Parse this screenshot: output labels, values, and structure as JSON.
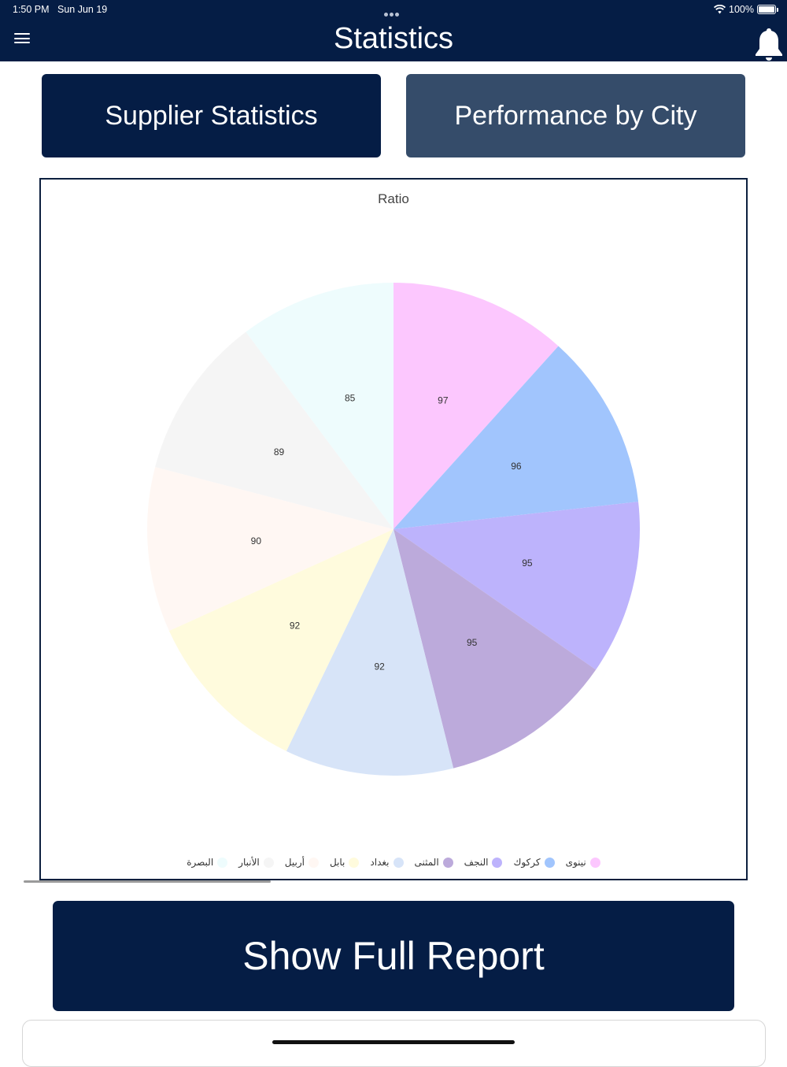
{
  "status_bar": {
    "time": "1:50 PM",
    "date": "Sun Jun 19",
    "battery": "100%"
  },
  "header": {
    "title": "Statistics",
    "background": "#051d45",
    "menu_icon": "hamburger-menu-icon",
    "notification_icon": "bell-icon"
  },
  "tabs": {
    "supplier_label": "Supplier Statistics",
    "city_label": "Performance by City",
    "active": "Supplier Statistics"
  },
  "chart_data": {
    "type": "pie",
    "title": "Ratio",
    "legend_position": "bottom",
    "slices": [
      {
        "label": "نينوى",
        "value": 97,
        "color": "#fcc7fe"
      },
      {
        "label": "كركوك",
        "value": 96,
        "color": "#a1c5fd"
      },
      {
        "label": "النجف",
        "value": 95,
        "color": "#bdb3fc"
      },
      {
        "label": "المثنى",
        "value": 95,
        "color": "#bcaadb"
      },
      {
        "label": "بغداد",
        "value": 92,
        "color": "#d7e4f8"
      },
      {
        "label": "بابل",
        "value": 92,
        "color": "#fffbdd"
      },
      {
        "label": "أربيل",
        "value": 90,
        "color": "#fff7f3"
      },
      {
        "label": "الأنبار",
        "value": 89,
        "color": "#f5f5f5"
      },
      {
        "label": "البصرة",
        "value": 85,
        "color": "#eefcfd"
      }
    ]
  },
  "footer": {
    "report_button_label": "Show Full Report"
  }
}
